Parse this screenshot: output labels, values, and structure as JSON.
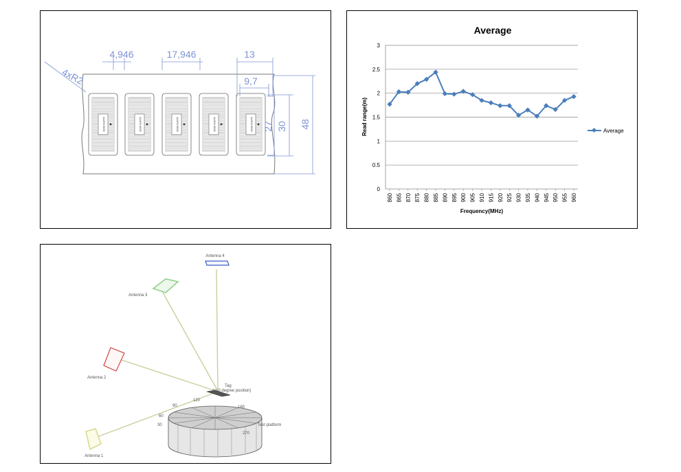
{
  "tag_drawing": {
    "dimensions": {
      "pitch_small": "4,946",
      "pitch_large": "17,946",
      "width_outer": "13",
      "width_inner": "9,7",
      "height_27": "27",
      "height_30": "30",
      "height_48": "48",
      "corner_radius": "4xR2"
    },
    "chip_text": "ALIEN 9630"
  },
  "chart_data": {
    "type": "line",
    "title": "Average",
    "xlabel": "Frequency(MHz)",
    "ylabel": "Read range(m)",
    "x": [
      860,
      865,
      870,
      875,
      880,
      885,
      890,
      895,
      900,
      905,
      910,
      915,
      920,
      925,
      930,
      935,
      940,
      945,
      950,
      955,
      960
    ],
    "x_tick_labels": [
      "860",
      "865",
      "870",
      "875",
      "880",
      "885",
      "890",
      "895",
      "900",
      "905",
      "910",
      "915",
      "920",
      "925",
      "930",
      "935",
      "940",
      "945",
      "950",
      "955",
      "960"
    ],
    "series": [
      {
        "name": "Average",
        "values": [
          1.77,
          2.03,
          2.02,
          2.2,
          2.29,
          2.44,
          1.99,
          1.98,
          2.04,
          1.97,
          1.85,
          1.8,
          1.74,
          1.74,
          1.54,
          1.65,
          1.52,
          1.74,
          1.66,
          1.85,
          1.93
        ]
      }
    ],
    "ylim": [
      0,
      3
    ],
    "y_ticks": [
      0,
      0.5,
      1,
      1.5,
      2,
      2.5,
      3
    ],
    "y_tick_labels": [
      "0",
      "0.5",
      "1",
      "1.5",
      "2",
      "2.5",
      "3"
    ],
    "grid": true,
    "legend": "right",
    "colors": {
      "series": "#4a7ebb"
    }
  },
  "setup": {
    "labels": {
      "antenna1": "Antenna 1",
      "antenna2": "Antenna 2",
      "antenna3": "Antenna 3",
      "antenna4": "Antenna 4",
      "tag": "Tag",
      "tag_position": "(in 0 degree position)",
      "platform": "Test platform"
    },
    "angles": [
      "30",
      "60",
      "90",
      "120",
      "180",
      "270"
    ]
  }
}
